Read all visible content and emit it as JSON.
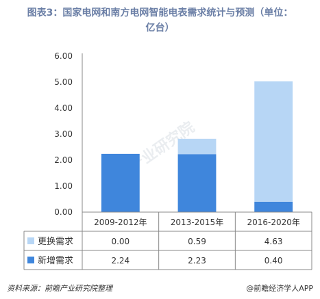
{
  "title": {
    "line1": "图表3：国家电网和南方电网智能电表需求统计与预测（单位：",
    "line2": "亿台）"
  },
  "chart_data": {
    "type": "bar",
    "stacked": true,
    "categories": [
      "2009-2012年",
      "2013-2015年",
      "2016-2020年"
    ],
    "series": [
      {
        "name": "新增需求",
        "values": [
          2.24,
          2.23,
          0.4
        ],
        "color": "#3f86dc"
      },
      {
        "name": "更换需求",
        "values": [
          0.0,
          0.59,
          4.63
        ],
        "color": "#b7d6f5"
      }
    ],
    "ylim": [
      0,
      6
    ],
    "yticks": [
      "0.00",
      "1.00",
      "2.00",
      "3.00",
      "4.00",
      "5.00",
      "6.00"
    ],
    "table_rows": [
      {
        "label": "更换需求",
        "values": [
          "0.00",
          "0.59",
          "4.63"
        ],
        "color": "#b7d6f5"
      },
      {
        "label": "新增需求",
        "values": [
          "2.24",
          "2.23",
          "0.40"
        ],
        "color": "#3f86dc"
      }
    ]
  },
  "footer": {
    "source": "资料来源：前瞻产业研究院整理",
    "brand": "@前瞻经济学人APP"
  },
  "watermark": "前瞻产业研究院"
}
